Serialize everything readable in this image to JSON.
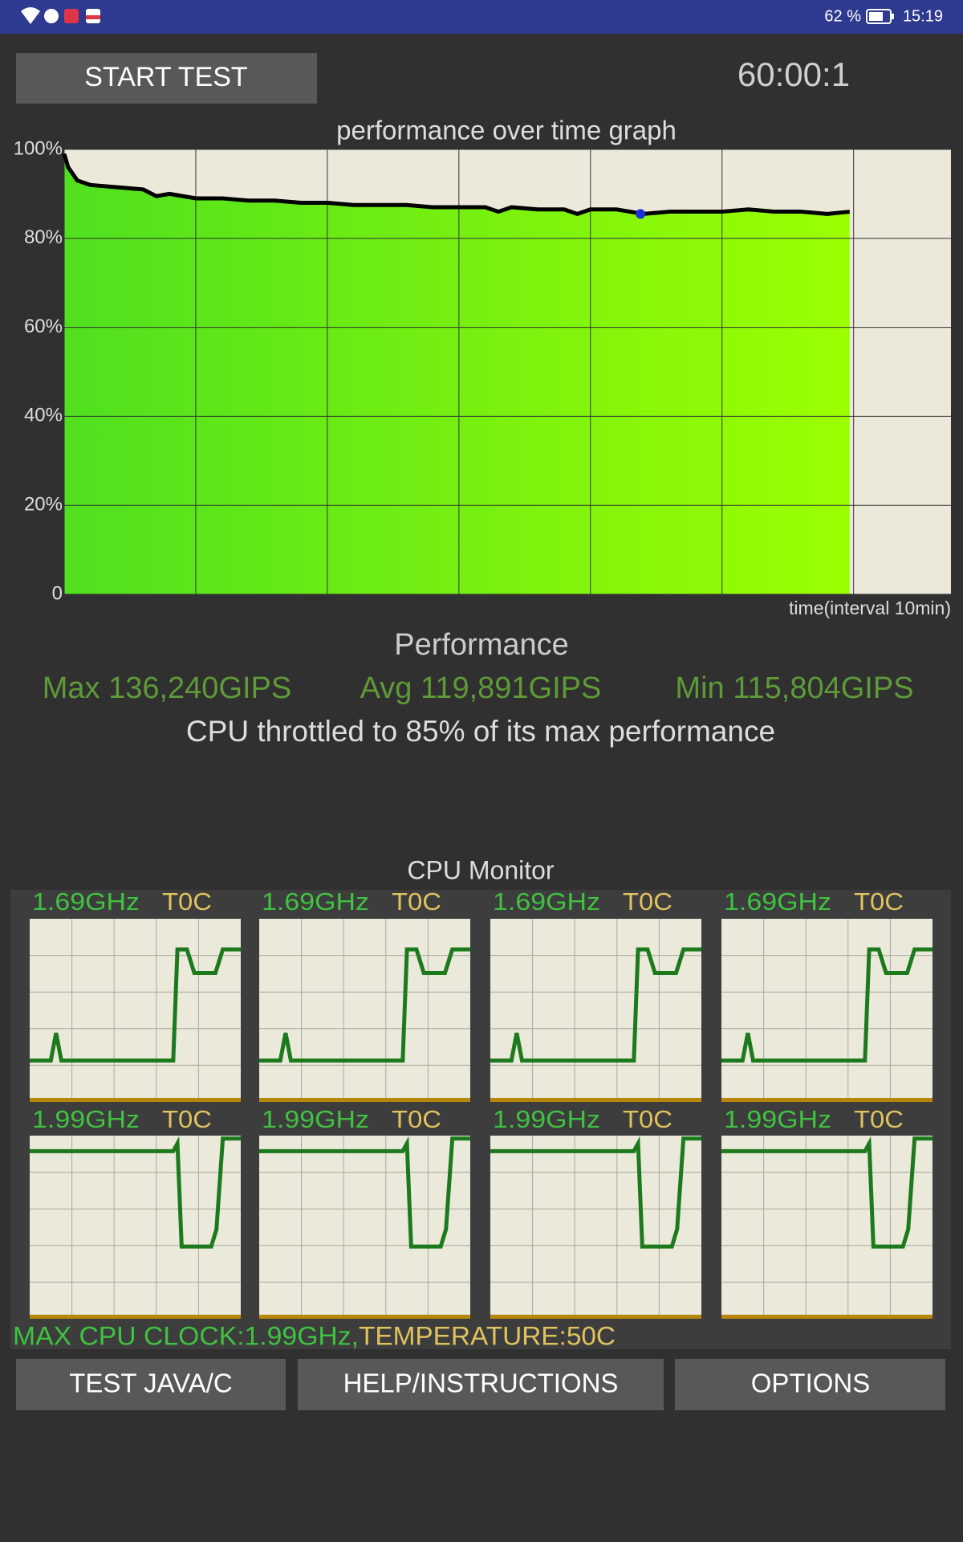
{
  "status_bar": {
    "battery": "62 %",
    "time": "15:19"
  },
  "buttons": {
    "start": "START TEST",
    "test_java": "TEST JAVA/C",
    "help": "HELP/INSTRUCTIONS",
    "options": "OPTIONS"
  },
  "timer": "60:00:1",
  "chart_data": {
    "type": "line",
    "title": "performance over time graph",
    "x_label": "time(interval 10min)",
    "x": [
      0,
      0.3,
      1,
      2,
      4,
      6,
      7,
      8,
      10,
      12,
      14,
      16,
      18,
      20,
      22,
      24,
      26,
      28,
      30,
      32,
      33,
      34,
      36,
      38,
      39,
      40,
      42,
      44,
      46,
      48,
      50,
      52,
      54,
      56,
      58,
      59.7
    ],
    "values": [
      99,
      96,
      93,
      92,
      91.5,
      91,
      89.5,
      90,
      89,
      89,
      88.5,
      88.5,
      88,
      88,
      87.5,
      87.5,
      87.5,
      87,
      87,
      87,
      86,
      87,
      86.5,
      86.5,
      85.5,
      86.5,
      86.5,
      85.5,
      86,
      86,
      86,
      86.5,
      86,
      86,
      85.5,
      86
    ],
    "color": "#000000",
    "fill_colors": [
      "#4fe01f",
      "#9cff00"
    ],
    "background": "#ece9da",
    "min_marker": {
      "x": 43.8,
      "value": 85.5,
      "color": "#1a2fd8"
    },
    "xlim": [
      0,
      67.4
    ],
    "xticks": [
      0,
      10,
      20,
      30,
      40,
      50,
      60
    ],
    "ylim": [
      0,
      100
    ],
    "yticks": [
      0,
      {
        "value": 20,
        "label": "20%"
      },
      {
        "value": 40,
        "label": "40%"
      },
      {
        "value": 60,
        "label": "60%"
      },
      {
        "value": 80,
        "label": "80%"
      },
      {
        "value": 100,
        "label": "100%"
      }
    ],
    "grid": true
  },
  "performance": {
    "title": "Performance",
    "max": "Max 136,240GIPS",
    "avg": "Avg 119,891GIPS",
    "min": "Min 115,804GIPS",
    "note": "CPU throttled to 85% of its max performance"
  },
  "cpu_monitor": {
    "title": "CPU Monitor",
    "xlim": [
      0,
      100
    ],
    "ylim": [
      0,
      100
    ],
    "color": "#1c7a1c",
    "cores": [
      {
        "clock": "1.69GHz",
        "temp": "T0C",
        "x": [
          0,
          10,
          12.5,
          15,
          68,
          70,
          74.5,
          78,
          88,
          91.5,
          100
        ],
        "values": [
          22.6,
          22.6,
          37.6,
          22.6,
          22.6,
          83.3,
          83.3,
          70.4,
          70.4,
          83.3,
          83.3
        ]
      },
      {
        "clock": "1.69GHz",
        "temp": "T0C",
        "x": [
          0,
          10,
          12.5,
          15,
          68,
          70,
          74.5,
          78,
          88,
          91.5,
          100
        ],
        "values": [
          22.6,
          22.6,
          37.6,
          22.6,
          22.6,
          83.3,
          83.3,
          70.4,
          70.4,
          83.3,
          83.3
        ]
      },
      {
        "clock": "1.69GHz",
        "temp": "T0C",
        "x": [
          0,
          10,
          12.5,
          15,
          68,
          70,
          74.5,
          78,
          88,
          91.5,
          100
        ],
        "values": [
          22.6,
          22.6,
          37.6,
          22.6,
          22.6,
          83.3,
          83.3,
          70.4,
          70.4,
          83.3,
          83.3
        ]
      },
      {
        "clock": "1.69GHz",
        "temp": "T0C",
        "x": [
          0,
          10,
          12.5,
          15,
          68,
          70,
          74.5,
          78,
          88,
          91.5,
          100
        ],
        "values": [
          22.6,
          22.6,
          37.6,
          22.6,
          22.6,
          83.3,
          83.3,
          70.4,
          70.4,
          83.3,
          83.3
        ]
      },
      {
        "clock": "1.99GHz",
        "temp": "T0C",
        "x": [
          0,
          68,
          70,
          72,
          86,
          88.5,
          91.5,
          100
        ],
        "values": [
          91.5,
          91.5,
          95.7,
          39.4,
          39.4,
          48.9,
          98.4,
          98.4
        ]
      },
      {
        "clock": "1.99GHz",
        "temp": "T0C",
        "x": [
          0,
          68,
          70,
          72,
          86,
          88.5,
          91.5,
          100
        ],
        "values": [
          91.5,
          91.5,
          95.7,
          39.4,
          39.4,
          48.9,
          98.4,
          98.4
        ]
      },
      {
        "clock": "1.99GHz",
        "temp": "T0C",
        "x": [
          0,
          68,
          70,
          72,
          86,
          88.5,
          91.5,
          100
        ],
        "values": [
          91.5,
          91.5,
          95.7,
          39.4,
          39.4,
          48.9,
          98.4,
          98.4
        ]
      },
      {
        "clock": "1.99GHz",
        "temp": "T0C",
        "x": [
          0,
          68,
          70,
          72,
          86,
          88.5,
          91.5,
          100
        ],
        "values": [
          91.5,
          91.5,
          95.7,
          39.4,
          39.4,
          48.9,
          98.4,
          98.4
        ]
      }
    ],
    "max_clock": "MAX CPU CLOCK:1.99GHz,",
    "temperature": "TEMPERATURE:50C"
  }
}
